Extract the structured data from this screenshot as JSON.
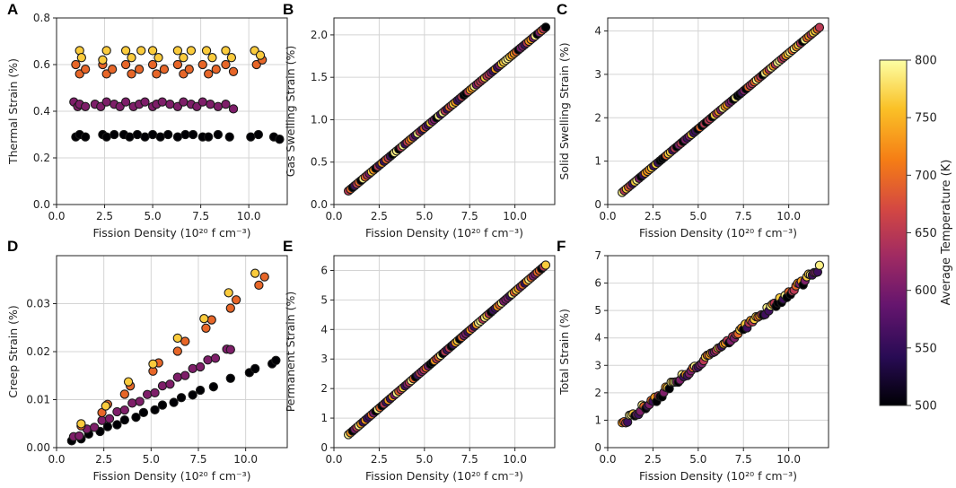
{
  "colorbar": {
    "label": "Average Temperature (K)",
    "ticks": [
      "500",
      "550",
      "600",
      "650",
      "700",
      "750",
      "800"
    ],
    "range": [
      500,
      800
    ]
  },
  "chart_data": [
    {
      "id": "A",
      "type": "scatter",
      "letter": "A",
      "xlabel": "Fission Density (10²⁰ f cm⁻³)",
      "ylabel": "Thermal Strain (%)",
      "xlim": [
        0,
        12
      ],
      "ylim": [
        0,
        0.8
      ],
      "xticks": [
        "0.0",
        "2.5",
        "5.0",
        "7.5",
        "10.0"
      ],
      "xtickvals": [
        0,
        2.5,
        5,
        7.5,
        10
      ],
      "yticks": [
        "0.0",
        "0.2",
        "0.4",
        "0.6",
        "0.8"
      ],
      "ytickvals": [
        0,
        0.2,
        0.4,
        0.6,
        0.8
      ],
      "series": [
        {
          "name": "500 K",
          "temp": 500,
          "x": [
            1.0,
            1.2,
            1.5,
            2.4,
            2.6,
            3.0,
            3.5,
            3.8,
            4.2,
            4.6,
            5.0,
            5.4,
            5.8,
            6.3,
            6.7,
            7.1,
            7.6,
            7.9,
            8.4,
            9.0,
            10.1,
            10.5,
            11.3,
            11.6
          ],
          "y": [
            0.29,
            0.3,
            0.29,
            0.3,
            0.29,
            0.3,
            0.3,
            0.29,
            0.3,
            0.29,
            0.3,
            0.29,
            0.3,
            0.29,
            0.3,
            0.3,
            0.29,
            0.29,
            0.3,
            0.29,
            0.29,
            0.3,
            0.29,
            0.28
          ]
        },
        {
          "name": "605 K",
          "temp": 605,
          "x": [
            0.9,
            1.1,
            1.2,
            1.5,
            2.0,
            2.3,
            2.6,
            3.0,
            3.3,
            3.6,
            4.0,
            4.3,
            4.6,
            5.0,
            5.2,
            5.5,
            5.9,
            6.3,
            6.6,
            7.0,
            7.3,
            7.6,
            8.0,
            8.4,
            8.8,
            9.2
          ],
          "y": [
            0.44,
            0.42,
            0.43,
            0.42,
            0.43,
            0.42,
            0.44,
            0.43,
            0.42,
            0.44,
            0.42,
            0.43,
            0.44,
            0.42,
            0.43,
            0.44,
            0.43,
            0.42,
            0.44,
            0.43,
            0.42,
            0.44,
            0.43,
            0.42,
            0.43,
            0.41
          ]
        },
        {
          "name": "695 K",
          "temp": 695,
          "x": [
            1.0,
            1.2,
            1.5,
            2.4,
            2.6,
            2.9,
            3.6,
            3.9,
            4.3,
            5.0,
            5.2,
            5.6,
            6.3,
            6.6,
            6.9,
            7.6,
            7.9,
            8.3,
            8.8,
            9.2,
            10.4,
            10.7
          ],
          "y": [
            0.6,
            0.56,
            0.58,
            0.6,
            0.56,
            0.58,
            0.6,
            0.56,
            0.58,
            0.6,
            0.56,
            0.58,
            0.6,
            0.56,
            0.58,
            0.6,
            0.56,
            0.58,
            0.6,
            0.57,
            0.6,
            0.62
          ]
        },
        {
          "name": "765 K",
          "temp": 765,
          "x": [
            1.2,
            1.3,
            2.4,
            2.6,
            3.6,
            3.9,
            4.4,
            5.0,
            5.3,
            6.3,
            6.6,
            7.0,
            7.8,
            8.1,
            8.8,
            9.1,
            10.3,
            10.6
          ],
          "y": [
            0.66,
            0.63,
            0.62,
            0.66,
            0.66,
            0.63,
            0.66,
            0.66,
            0.63,
            0.66,
            0.63,
            0.66,
            0.66,
            0.63,
            0.66,
            0.63,
            0.66,
            0.64
          ]
        }
      ]
    },
    {
      "id": "B",
      "type": "scatter",
      "letter": "B",
      "xlabel": "Fission Density (10²⁰ f cm⁻³)",
      "ylabel": "Gas Swelling Strain (%)",
      "xlim": [
        0,
        12.2
      ],
      "ylim": [
        0,
        2.2
      ],
      "xticks": [
        "0.0",
        "2.5",
        "5.0",
        "7.5",
        "10.0"
      ],
      "xtickvals": [
        0,
        2.5,
        5,
        7.5,
        10
      ],
      "yticks": [
        "0.0",
        "0.5",
        "1.0",
        "1.5",
        "2.0"
      ],
      "ytickvals": [
        0,
        0.5,
        1,
        1.5,
        2
      ],
      "line": {
        "x0": 0.8,
        "x1": 11.7,
        "y0": 0.16,
        "y1": 2.09
      }
    },
    {
      "id": "C",
      "type": "scatter",
      "letter": "C",
      "xlabel": "Fission Density (10²⁰ f cm⁻³)",
      "ylabel": "Solid Swelling Strain (%)",
      "xlim": [
        0,
        12.2
      ],
      "ylim": [
        0,
        4.3
      ],
      "xticks": [
        "0.0",
        "2.5",
        "5.0",
        "7.5",
        "10.0"
      ],
      "xtickvals": [
        0,
        2.5,
        5,
        7.5,
        10
      ],
      "yticks": [
        "0",
        "1",
        "2",
        "3",
        "4"
      ],
      "ytickvals": [
        0,
        1,
        2,
        3,
        4
      ],
      "line": {
        "x0": 0.8,
        "x1": 11.7,
        "y0": 0.28,
        "y1": 4.08
      }
    },
    {
      "id": "D",
      "type": "scatter",
      "letter": "D",
      "xlabel": "Fission Density (10²⁰ f cm⁻³)",
      "ylabel": "Creep Strain (%)",
      "xlim": [
        0,
        12.2
      ],
      "ylim": [
        0,
        0.04
      ],
      "xticks": [
        "0.0",
        "2.5",
        "5.0",
        "7.5",
        "10.0"
      ],
      "xtickvals": [
        0,
        2.5,
        5,
        7.5,
        10
      ],
      "yticks": [
        "0.00",
        "0.01",
        "0.02",
        "0.03"
      ],
      "ytickvals": [
        0,
        0.01,
        0.02,
        0.03
      ],
      "series": [
        {
          "name": "500 K",
          "slope": 0.00155,
          "x": [
            0.8,
            1.3,
            1.7,
            2.3,
            2.7,
            3.2,
            3.6,
            4.2,
            4.6,
            5.2,
            5.6,
            6.2,
            6.6,
            7.2,
            7.6,
            8.3,
            9.2,
            10.2,
            10.5,
            11.4,
            11.6
          ],
          "temp": 500
        },
        {
          "name": "605 K",
          "slope": 0.00225,
          "x": [
            0.9,
            1.2,
            1.6,
            2.0,
            2.4,
            2.8,
            3.2,
            3.6,
            4.0,
            4.4,
            4.8,
            5.2,
            5.6,
            6.0,
            6.4,
            6.8,
            7.2,
            7.6,
            8.0,
            8.4,
            9.0,
            9.2
          ],
          "temp": 605
        },
        {
          "name": "695 K",
          "slope": 0.0032,
          "x": [
            1.3,
            2.4,
            2.7,
            3.6,
            3.9,
            5.1,
            5.4,
            6.4,
            6.8,
            7.9,
            8.2,
            9.2,
            9.5,
            10.7,
            11.0
          ],
          "temp": 695
        },
        {
          "name": "765 K",
          "slope": 0.0035,
          "x": [
            1.3,
            2.6,
            3.8,
            5.1,
            6.4,
            7.8,
            9.1,
            10.5
          ],
          "temp": 765
        }
      ]
    },
    {
      "id": "E",
      "type": "scatter",
      "letter": "E",
      "xlabel": "Fission Density (10²⁰ f cm⁻³)",
      "ylabel": "Permanent Strain (%)",
      "xlim": [
        0,
        12.2
      ],
      "ylim": [
        0,
        6.5
      ],
      "xticks": [
        "0.0",
        "2.5",
        "5.0",
        "7.5",
        "10.0"
      ],
      "xtickvals": [
        0,
        2.5,
        5,
        7.5,
        10
      ],
      "yticks": [
        "0",
        "1",
        "2",
        "3",
        "4",
        "5",
        "6"
      ],
      "ytickvals": [
        0,
        1,
        2,
        3,
        4,
        5,
        6
      ],
      "line": {
        "x0": 0.8,
        "x1": 11.7,
        "y0": 0.44,
        "y1": 6.18
      }
    },
    {
      "id": "F",
      "type": "scatter",
      "letter": "F",
      "xlabel": "Fission Density (10²⁰ f cm⁻³)",
      "ylabel": "Total Strain (%)",
      "xlim": [
        0,
        12.2
      ],
      "ylim": [
        0,
        7
      ],
      "xticks": [
        "0.0",
        "2.5",
        "5.0",
        "7.5",
        "10.0"
      ],
      "xtickvals": [
        0,
        2.5,
        5,
        7.5,
        10
      ],
      "yticks": [
        "0",
        "1",
        "2",
        "3",
        "4",
        "5",
        "6",
        "7"
      ],
      "ytickvals": [
        0,
        1,
        2,
        3,
        4,
        5,
        6,
        7
      ],
      "bands": {
        "x0": 0.8,
        "x1": 11.7,
        "y0_low": 0.75,
        "y1_low": 6.45,
        "y0_high": 0.95,
        "y1_high": 6.6
      }
    }
  ]
}
